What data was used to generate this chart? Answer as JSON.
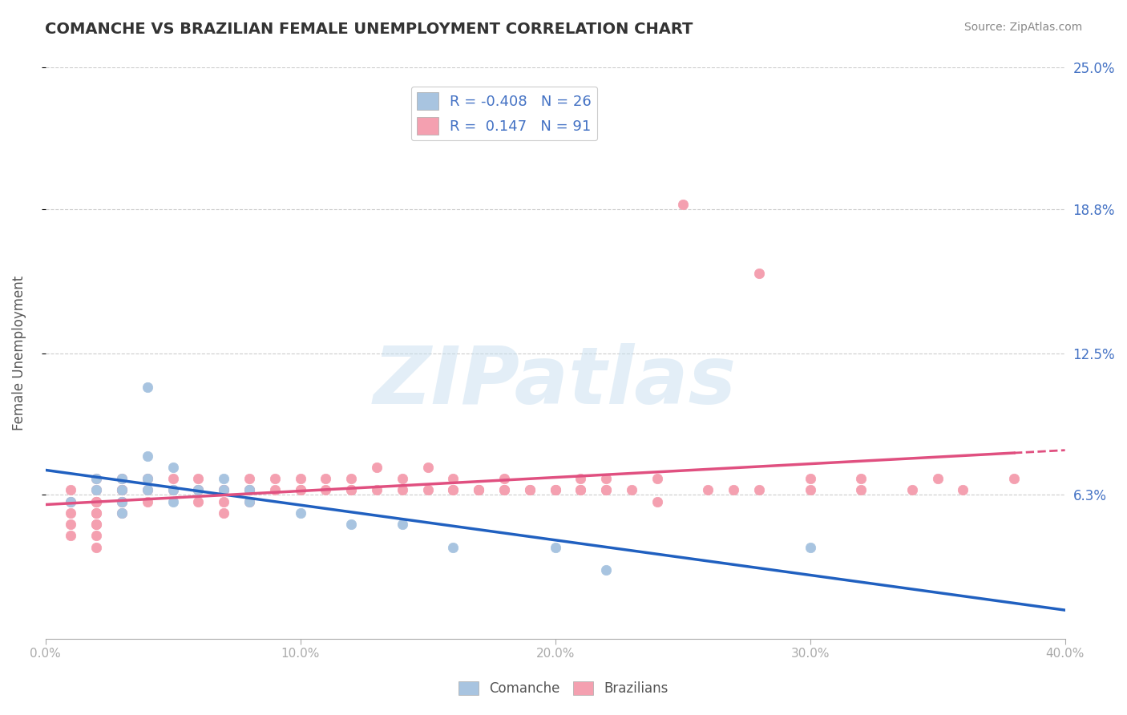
{
  "title": "COMANCHE VS BRAZILIAN FEMALE UNEMPLOYMENT CORRELATION CHART",
  "source": "Source: ZipAtlas.com",
  "xlabel": "",
  "ylabel": "Female Unemployment",
  "xlim": [
    0.0,
    0.4
  ],
  "ylim": [
    0.0,
    0.25
  ],
  "yticks": [
    0.063,
    0.125,
    0.188,
    0.25
  ],
  "ytick_labels": [
    "6.3%",
    "12.5%",
    "18.8%",
    "25.0%"
  ],
  "xticks": [
    0.0,
    0.1,
    0.2,
    0.3,
    0.4
  ],
  "xtick_labels": [
    "0.0%",
    "10.0%",
    "20.0%",
    "30.0%",
    "40.0%"
  ],
  "comanche_color": "#a8c4e0",
  "brazilian_color": "#f4a0b0",
  "comanche_line_color": "#2060c0",
  "brazilian_line_color": "#e05080",
  "comanche_R": -0.408,
  "comanche_N": 26,
  "brazilian_R": 0.147,
  "brazilian_N": 91,
  "background_color": "#ffffff",
  "grid_color": "#cccccc",
  "watermark_text": "ZIPatlas",
  "watermark_color": "#c8dff0",
  "legend_label_comanche": "R = -0.408   N = 26",
  "legend_label_brazilian": "R =  0.147   N = 91",
  "comanche_x": [
    0.01,
    0.02,
    0.02,
    0.03,
    0.03,
    0.03,
    0.03,
    0.04,
    0.04,
    0.04,
    0.04,
    0.05,
    0.05,
    0.05,
    0.06,
    0.07,
    0.07,
    0.08,
    0.08,
    0.1,
    0.12,
    0.14,
    0.16,
    0.2,
    0.22,
    0.3
  ],
  "comanche_y": [
    0.06,
    0.07,
    0.065,
    0.06,
    0.065,
    0.055,
    0.07,
    0.08,
    0.11,
    0.065,
    0.07,
    0.065,
    0.06,
    0.075,
    0.065,
    0.065,
    0.07,
    0.06,
    0.065,
    0.055,
    0.05,
    0.05,
    0.04,
    0.04,
    0.03,
    0.04
  ],
  "brazilian_x": [
    0.01,
    0.01,
    0.01,
    0.01,
    0.01,
    0.02,
    0.02,
    0.02,
    0.02,
    0.02,
    0.02,
    0.02,
    0.02,
    0.02,
    0.02,
    0.02,
    0.03,
    0.03,
    0.03,
    0.03,
    0.03,
    0.03,
    0.03,
    0.04,
    0.04,
    0.04,
    0.05,
    0.05,
    0.06,
    0.06,
    0.06,
    0.06,
    0.07,
    0.07,
    0.07,
    0.07,
    0.08,
    0.08,
    0.08,
    0.08,
    0.09,
    0.09,
    0.1,
    0.1,
    0.11,
    0.11,
    0.12,
    0.12,
    0.13,
    0.13,
    0.14,
    0.14,
    0.15,
    0.15,
    0.16,
    0.16,
    0.17,
    0.18,
    0.18,
    0.19,
    0.2,
    0.2,
    0.21,
    0.22,
    0.22,
    0.22,
    0.24,
    0.24,
    0.25,
    0.26,
    0.27,
    0.28,
    0.28,
    0.3,
    0.3,
    0.32,
    0.32,
    0.34,
    0.35,
    0.36,
    0.38,
    0.18,
    0.1,
    0.12,
    0.16,
    0.17,
    0.17,
    0.19,
    0.21,
    0.21,
    0.23
  ],
  "brazilian_y": [
    0.06,
    0.065,
    0.055,
    0.05,
    0.045,
    0.065,
    0.06,
    0.055,
    0.05,
    0.045,
    0.04,
    0.06,
    0.07,
    0.06,
    0.055,
    0.05,
    0.065,
    0.06,
    0.055,
    0.07,
    0.065,
    0.06,
    0.065,
    0.065,
    0.06,
    0.07,
    0.065,
    0.07,
    0.065,
    0.06,
    0.065,
    0.07,
    0.06,
    0.065,
    0.055,
    0.065,
    0.07,
    0.065,
    0.06,
    0.065,
    0.065,
    0.07,
    0.065,
    0.07,
    0.065,
    0.07,
    0.07,
    0.065,
    0.075,
    0.065,
    0.065,
    0.07,
    0.075,
    0.065,
    0.07,
    0.065,
    0.065,
    0.065,
    0.07,
    0.065,
    0.065,
    0.065,
    0.07,
    0.065,
    0.07,
    0.065,
    0.07,
    0.06,
    0.19,
    0.065,
    0.065,
    0.16,
    0.065,
    0.065,
    0.07,
    0.065,
    0.07,
    0.065,
    0.07,
    0.065,
    0.07,
    0.065,
    0.065,
    0.065,
    0.065,
    0.065,
    0.065,
    0.065,
    0.065,
    0.065,
    0.065
  ]
}
